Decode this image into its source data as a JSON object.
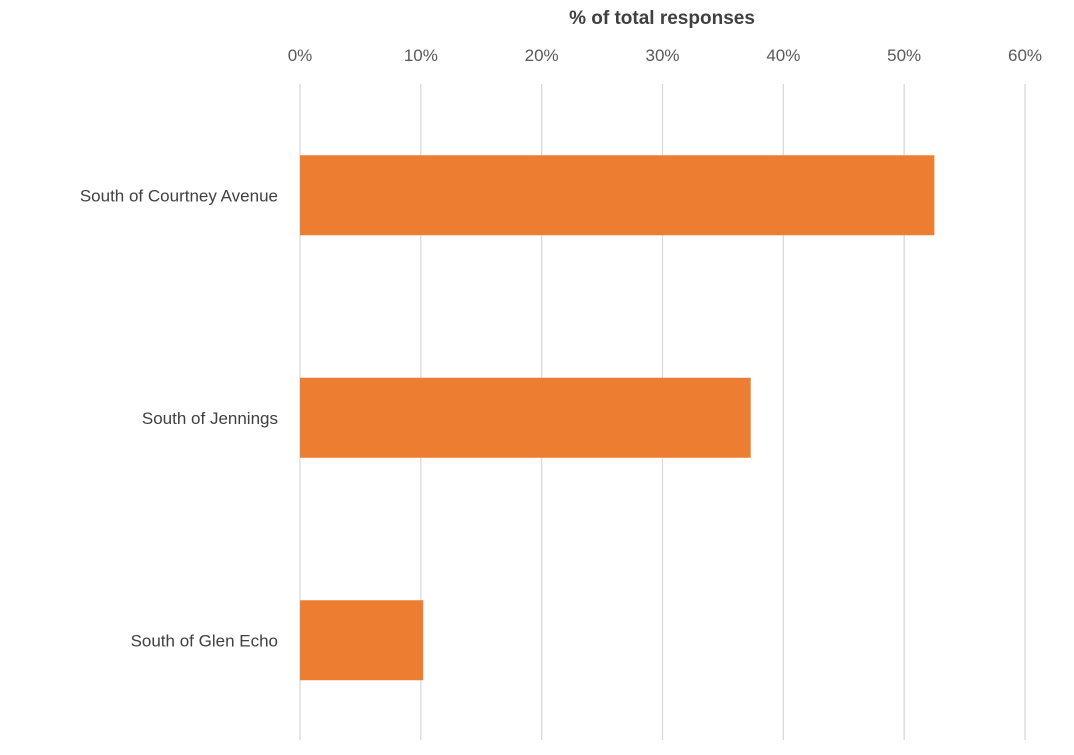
{
  "chart_data": {
    "type": "bar",
    "orientation": "horizontal",
    "title": "",
    "xlabel": "% of total responses",
    "ylabel": "",
    "x_axis_position": "top",
    "categories": [
      "South of Courtney Avenue",
      "South of Jennings",
      "South of Glen Echo"
    ],
    "series": [
      {
        "values": [
          52.5,
          37.3,
          10.2
        ]
      }
    ],
    "xlim": [
      0,
      60
    ],
    "xticks": [
      0,
      10,
      20,
      30,
      40,
      50,
      60
    ],
    "xtick_labels": [
      "0%",
      "10%",
      "20%",
      "30%",
      "40%",
      "50%",
      "60%"
    ],
    "grid": "vertical",
    "legend": "none",
    "colors": {
      "bar": "#ED7D31"
    }
  }
}
